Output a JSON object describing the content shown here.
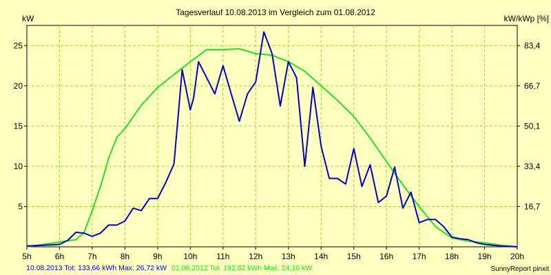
{
  "colors": {
    "background": "#ffffc0",
    "grid": "#8fe02a",
    "series_2013": "#0000cc",
    "series_2012": "#22e022"
  },
  "chart_data": {
    "type": "line",
    "title": "Tagesverlauf 10.08.2013 im Vergleich zum 01.08.2012",
    "ylabel_left": "kW",
    "ylabel_right": "kW/kWp [%]",
    "xlim": [
      5,
      20
    ],
    "ylim": [
      0,
      27.5
    ],
    "grid": true,
    "x_ticks": [
      {
        "v": 5,
        "label": "5h"
      },
      {
        "v": 6,
        "label": "6h"
      },
      {
        "v": 7,
        "label": "7h"
      },
      {
        "v": 8,
        "label": "8h"
      },
      {
        "v": 9,
        "label": "9h"
      },
      {
        "v": 10,
        "label": "10h"
      },
      {
        "v": 11,
        "label": "11h"
      },
      {
        "v": 12,
        "label": "12h"
      },
      {
        "v": 13,
        "label": "13h"
      },
      {
        "v": 14,
        "label": "14h"
      },
      {
        "v": 15,
        "label": "15h"
      },
      {
        "v": 16,
        "label": "16h"
      },
      {
        "v": 17,
        "label": "17h"
      },
      {
        "v": 18,
        "label": "18h"
      },
      {
        "v": 19,
        "label": "19h"
      },
      {
        "v": 20,
        "label": "20h"
      }
    ],
    "y_left_ticks": [
      {
        "v": 5,
        "label": "5"
      },
      {
        "v": 10,
        "label": "10"
      },
      {
        "v": 15,
        "label": "15"
      },
      {
        "v": 20,
        "label": "20"
      },
      {
        "v": 25,
        "label": "25"
      }
    ],
    "y_right_ticks": [
      {
        "v": 5,
        "label": "16,7"
      },
      {
        "v": 10,
        "label": "33,4"
      },
      {
        "v": 15,
        "label": "50,1"
      },
      {
        "v": 20,
        "label": "66,7"
      },
      {
        "v": 25,
        "label": "83,4"
      }
    ],
    "series": [
      {
        "key": "s2013",
        "color": "#0000cc",
        "x": [
          5.0,
          5.5,
          6.0,
          6.25,
          6.5,
          6.75,
          7.0,
          7.25,
          7.5,
          7.75,
          8.0,
          8.25,
          8.5,
          8.75,
          9.0,
          9.25,
          9.5,
          9.75,
          10.0,
          10.1,
          10.25,
          10.5,
          10.75,
          11.0,
          11.25,
          11.5,
          11.75,
          12.0,
          12.25,
          12.5,
          12.75,
          13.0,
          13.25,
          13.5,
          13.75,
          14.0,
          14.25,
          14.5,
          14.75,
          15.0,
          15.25,
          15.5,
          15.75,
          16.0,
          16.25,
          16.5,
          16.75,
          17.0,
          17.25,
          17.5,
          17.75,
          18.0,
          18.25,
          18.5,
          18.75,
          19.0,
          19.25,
          19.5,
          19.75,
          20.0
        ],
        "y": [
          0.1,
          0.2,
          0.3,
          0.8,
          1.8,
          1.7,
          1.3,
          1.7,
          2.7,
          2.7,
          3.2,
          4.8,
          4.5,
          6.0,
          6.0,
          8.0,
          10.3,
          22.0,
          17.0,
          18.5,
          23.0,
          21.0,
          19.0,
          22.5,
          19.0,
          15.6,
          19.0,
          20.5,
          26.7,
          24.0,
          17.5,
          23.0,
          21.0,
          10.0,
          19.8,
          12.5,
          8.5,
          8.5,
          7.8,
          12.2,
          7.5,
          10.2,
          5.5,
          6.3,
          9.9,
          4.8,
          6.8,
          3.0,
          3.4,
          3.4,
          2.5,
          1.2,
          1.0,
          0.9,
          0.5,
          0.3,
          0.2,
          0.1,
          0.05,
          0.0
        ]
      },
      {
        "key": "s2012",
        "color": "#22e022",
        "x": [
          5.0,
          5.5,
          6.0,
          6.5,
          6.75,
          7.0,
          7.25,
          7.5,
          7.75,
          8.0,
          8.5,
          9.0,
          9.5,
          10.0,
          10.5,
          11.0,
          11.5,
          12.0,
          12.5,
          13.0,
          13.5,
          14.0,
          14.5,
          15.0,
          15.5,
          16.0,
          16.5,
          17.0,
          17.5,
          18.0,
          18.5,
          19.0,
          19.5,
          20.0
        ],
        "y": [
          0.0,
          0.3,
          0.6,
          0.9,
          1.8,
          4.5,
          7.5,
          11.0,
          13.6,
          14.7,
          17.6,
          19.8,
          21.4,
          23.0,
          24.5,
          24.5,
          24.6,
          24.0,
          23.8,
          23.0,
          21.8,
          20.0,
          18.2,
          16.2,
          13.5,
          10.6,
          7.7,
          5.0,
          2.5,
          1.1,
          0.7,
          0.5,
          0.2,
          0.0
        ]
      }
    ],
    "legend": {
      "series_2013_text": "10.08.2013 Tot: 133,66 kWh Max: 26,72 kW",
      "series_2012_text": "01.08.2012 Tot: 192,82 kWh Max: 24,10 kW"
    },
    "credit": "SunnyReport pinxit"
  }
}
